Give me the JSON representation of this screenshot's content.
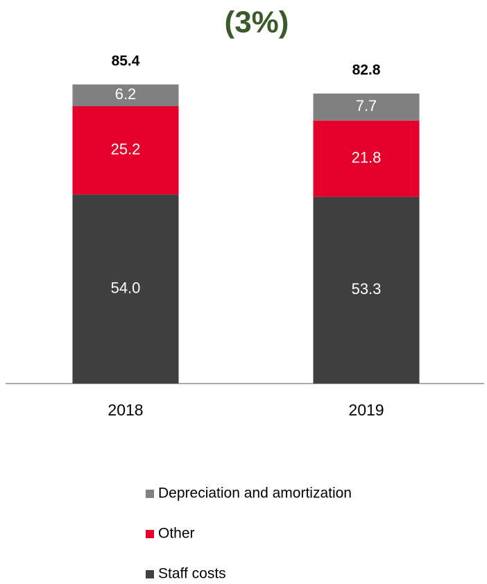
{
  "chart_data": {
    "type": "stacked_bar",
    "title": "(3%)",
    "categories": [
      "2018",
      "2019"
    ],
    "series": [
      {
        "name": "Staff costs",
        "color": "#404040",
        "values": [
          54.0,
          53.3
        ],
        "value_labels": [
          "54.0",
          "53.3"
        ]
      },
      {
        "name": "Other",
        "color": "#e4002b",
        "values": [
          25.2,
          21.8
        ],
        "value_labels": [
          "25.2",
          "21.8"
        ]
      },
      {
        "name": "Depreciation and amortization",
        "color": "#808080",
        "values": [
          6.2,
          7.7
        ],
        "value_labels": [
          "6.2",
          "7.7"
        ]
      }
    ],
    "totals": [
      85.4,
      82.8
    ]
  }
}
